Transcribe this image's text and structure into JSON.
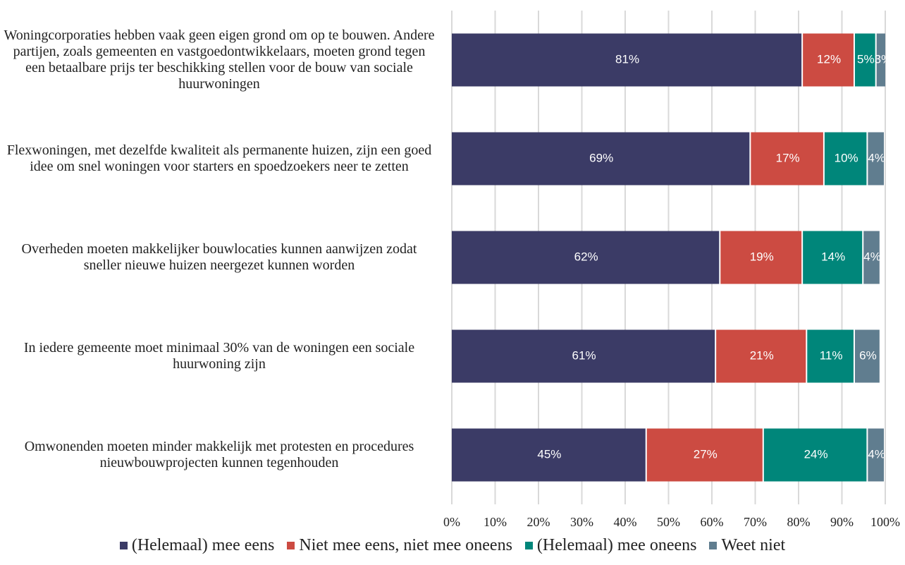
{
  "chart_data": {
    "type": "stacked_barh",
    "categories": [
      "Woningcorporaties hebben vaak geen eigen grond om op te bouwen. Andere partijen, zoals gemeenten en vastgoedontwikkelaars, moeten grond tegen een betaalbare prijs ter beschikking stellen voor de bouw van sociale huurwoningen",
      "Flexwoningen, met dezelfde kwaliteit als permanente huizen, zijn een goed idee om snel woningen voor starters en spoedzoekers neer te zetten",
      "Overheden moeten makkelijker bouwlocaties kunnen aanwijzen zodat sneller nieuwe huizen neergezet kunnen worden",
      "In iedere gemeente moet minimaal 30% van de woningen een sociale huurwoning zijn",
      "Omwonenden moeten minder makkelijk met protesten en procedures nieuwbouwprojecten kunnen tegenhouden"
    ],
    "series": [
      {
        "name": "(Helemaal) mee eens",
        "color": "#3b3b66",
        "values": [
          81,
          69,
          62,
          61,
          45
        ],
        "value_labels": [
          "81%",
          "69%",
          "62%",
          "61%",
          "45%"
        ]
      },
      {
        "name": "Niet mee eens, niet mee oneens",
        "color": "#cc4b42",
        "values": [
          12,
          17,
          19,
          21,
          27
        ],
        "value_labels": [
          "12%",
          "17%",
          "19%",
          "21%",
          "27%"
        ]
      },
      {
        "name": "(Helemaal) mee oneens",
        "color": "#00867a",
        "values": [
          5,
          10,
          14,
          11,
          24
        ],
        "value_labels": [
          "5%",
          "10%",
          "14%",
          "11%",
          "24%"
        ]
      },
      {
        "name": "Weet niet",
        "color": "#607d8f",
        "values": [
          3,
          4,
          4,
          6,
          4
        ],
        "value_labels": [
          "3%",
          "4%",
          "4%",
          "6%",
          "4%"
        ]
      }
    ],
    "xlim": [
      0,
      100
    ],
    "xticks": [
      {
        "value": 0,
        "label": "0%"
      },
      {
        "value": 10,
        "label": "10%"
      },
      {
        "value": 20,
        "label": "20%"
      },
      {
        "value": 30,
        "label": "30%"
      },
      {
        "value": 40,
        "label": "40%"
      },
      {
        "value": 50,
        "label": "50%"
      },
      {
        "value": 60,
        "label": "60%"
      },
      {
        "value": 70,
        "label": "70%"
      },
      {
        "value": 80,
        "label": "80%"
      },
      {
        "value": 90,
        "label": "90%"
      },
      {
        "value": 100,
        "label": "100%"
      }
    ],
    "grid": true,
    "legend": "bottom"
  }
}
